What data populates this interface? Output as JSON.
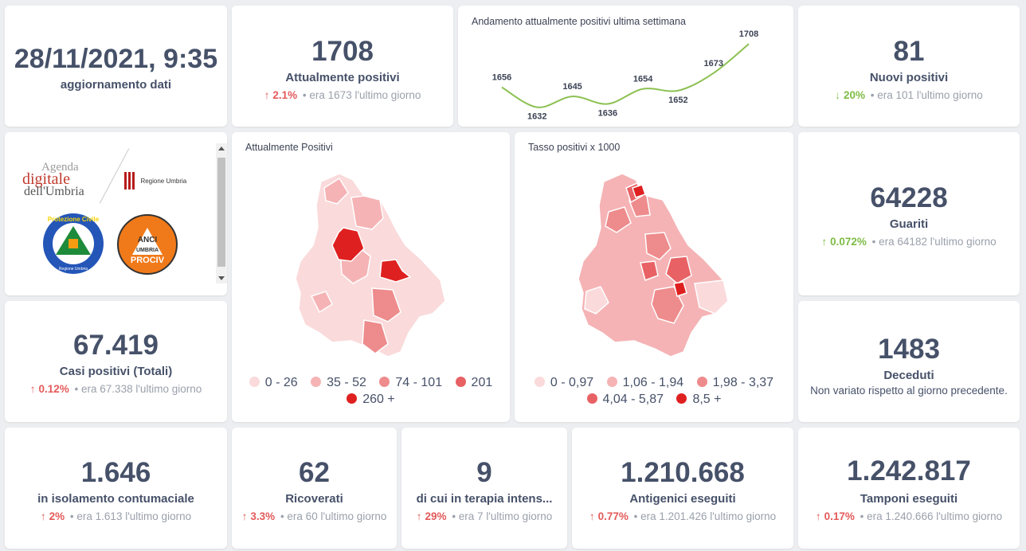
{
  "update": {
    "datetime": "28/11/2021, 9:35",
    "label": "aggiornamento dati"
  },
  "attualmente": {
    "value": "1708",
    "label": "Attualmente positivi",
    "arrow": "↑",
    "pct": "2.1%",
    "prev": "era 1673",
    "suffix": "l'ultimo giorno"
  },
  "trend": {
    "title": "Andamento attualmente positivi ultima settimana"
  },
  "chart_data": {
    "type": "line",
    "title": "Andamento attualmente positivi ultima settimana",
    "x": [
      1,
      2,
      3,
      4,
      5,
      6,
      7,
      8
    ],
    "values": [
      1656,
      1632,
      1645,
      1636,
      1654,
      1652,
      1673,
      1708
    ],
    "labels": [
      "1656",
      "1632",
      "1645",
      "1636",
      "1654",
      "1652",
      "1673",
      "1708"
    ],
    "color": "#8cc152",
    "xlabel": "",
    "ylabel": ""
  },
  "nuovi": {
    "value": "81",
    "label": "Nuovi positivi",
    "arrow": "↓",
    "pct": "20%",
    "prev": "era 101",
    "suffix": "l'ultimo giorno"
  },
  "logos": {
    "agenda_line1": "Agenda",
    "agenda_line2": "digitale",
    "agenda_line3": "dell'Umbria",
    "regione": "Regione Umbria",
    "protezione": "Protezione Civile",
    "protezione_sub": "Regione Umbria",
    "anci_top": "ANCI",
    "anci_mid": "UMBRIA",
    "anci_bottom": "PROCIV"
  },
  "map1": {
    "title": "Attualmente Positivi",
    "legend": [
      {
        "label": "0 - 26",
        "color": "#fadadb"
      },
      {
        "label": "35 - 52",
        "color": "#f5b3b5"
      },
      {
        "label": "74 - 101",
        "color": "#ee8b8c"
      },
      {
        "label": "201",
        "color": "#e86164"
      },
      {
        "label": "260 +",
        "color": "#df2020"
      }
    ]
  },
  "map2": {
    "title": "Tasso positivi x 1000",
    "legend": [
      {
        "label": "0 - 0,97",
        "color": "#fadadb"
      },
      {
        "label": "1,06 - 1,94",
        "color": "#f5b3b5"
      },
      {
        "label": "1,98 - 3,37",
        "color": "#ee8b8c"
      },
      {
        "label": "4,04 - 5,87",
        "color": "#e86164"
      },
      {
        "label": "8,5 +",
        "color": "#df2020"
      }
    ]
  },
  "guariti": {
    "value": "64228",
    "label": "Guariti",
    "arrow": "↑",
    "pct": "0.072%",
    "prev": "era 64182",
    "suffix": "l'ultimo giorno"
  },
  "casi": {
    "value": "67.419",
    "label": "Casi positivi (Totali)",
    "arrow": "↑",
    "pct": "0.12%",
    "prev": "era 67.338",
    "suffix": "l'ultimo giorno"
  },
  "deceduti": {
    "value": "1483",
    "label": "Deceduti",
    "note": "Non variato rispetto al giorno precedente."
  },
  "isolamento": {
    "value": "1.646",
    "label": "in isolamento contumaciale",
    "arrow": "↑",
    "pct": "2%",
    "prev": "era 1.613",
    "suffix": "l'ultimo giorno"
  },
  "ricoverati": {
    "value": "62",
    "label": "Ricoverati",
    "arrow": "↑",
    "pct": "3.3%",
    "prev": "era 60",
    "suffix": "l'ultimo giorno"
  },
  "terapia": {
    "value": "9",
    "label": "di cui in terapia intens...",
    "arrow": "↑",
    "pct": "29%",
    "prev": "era 7",
    "suffix": "l'ultimo giorno"
  },
  "antigenici": {
    "value": "1.210.668",
    "label": "Antigenici eseguiti",
    "arrow": "↑",
    "pct": "0.77%",
    "prev": "era 1.201.426",
    "suffix": "l'ultimo giorno"
  },
  "tamponi": {
    "value": "1.242.817",
    "label": "Tamponi eseguiti",
    "arrow": "↑",
    "pct": "0.17%",
    "prev": "era 1.240.666",
    "suffix": "l'ultimo giorno"
  }
}
